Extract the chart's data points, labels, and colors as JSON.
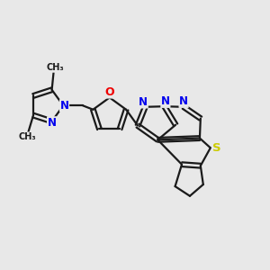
{
  "background_color": "#e8e8e8",
  "bond_color": "#1a1a1a",
  "N_color": "#0000ee",
  "O_color": "#ee0000",
  "S_color": "#cccc00",
  "line_width": 1.6,
  "dpi": 100,
  "figsize": [
    3.0,
    3.0
  ],
  "xlim": [
    0,
    10
  ],
  "ylim": [
    0,
    10
  ]
}
